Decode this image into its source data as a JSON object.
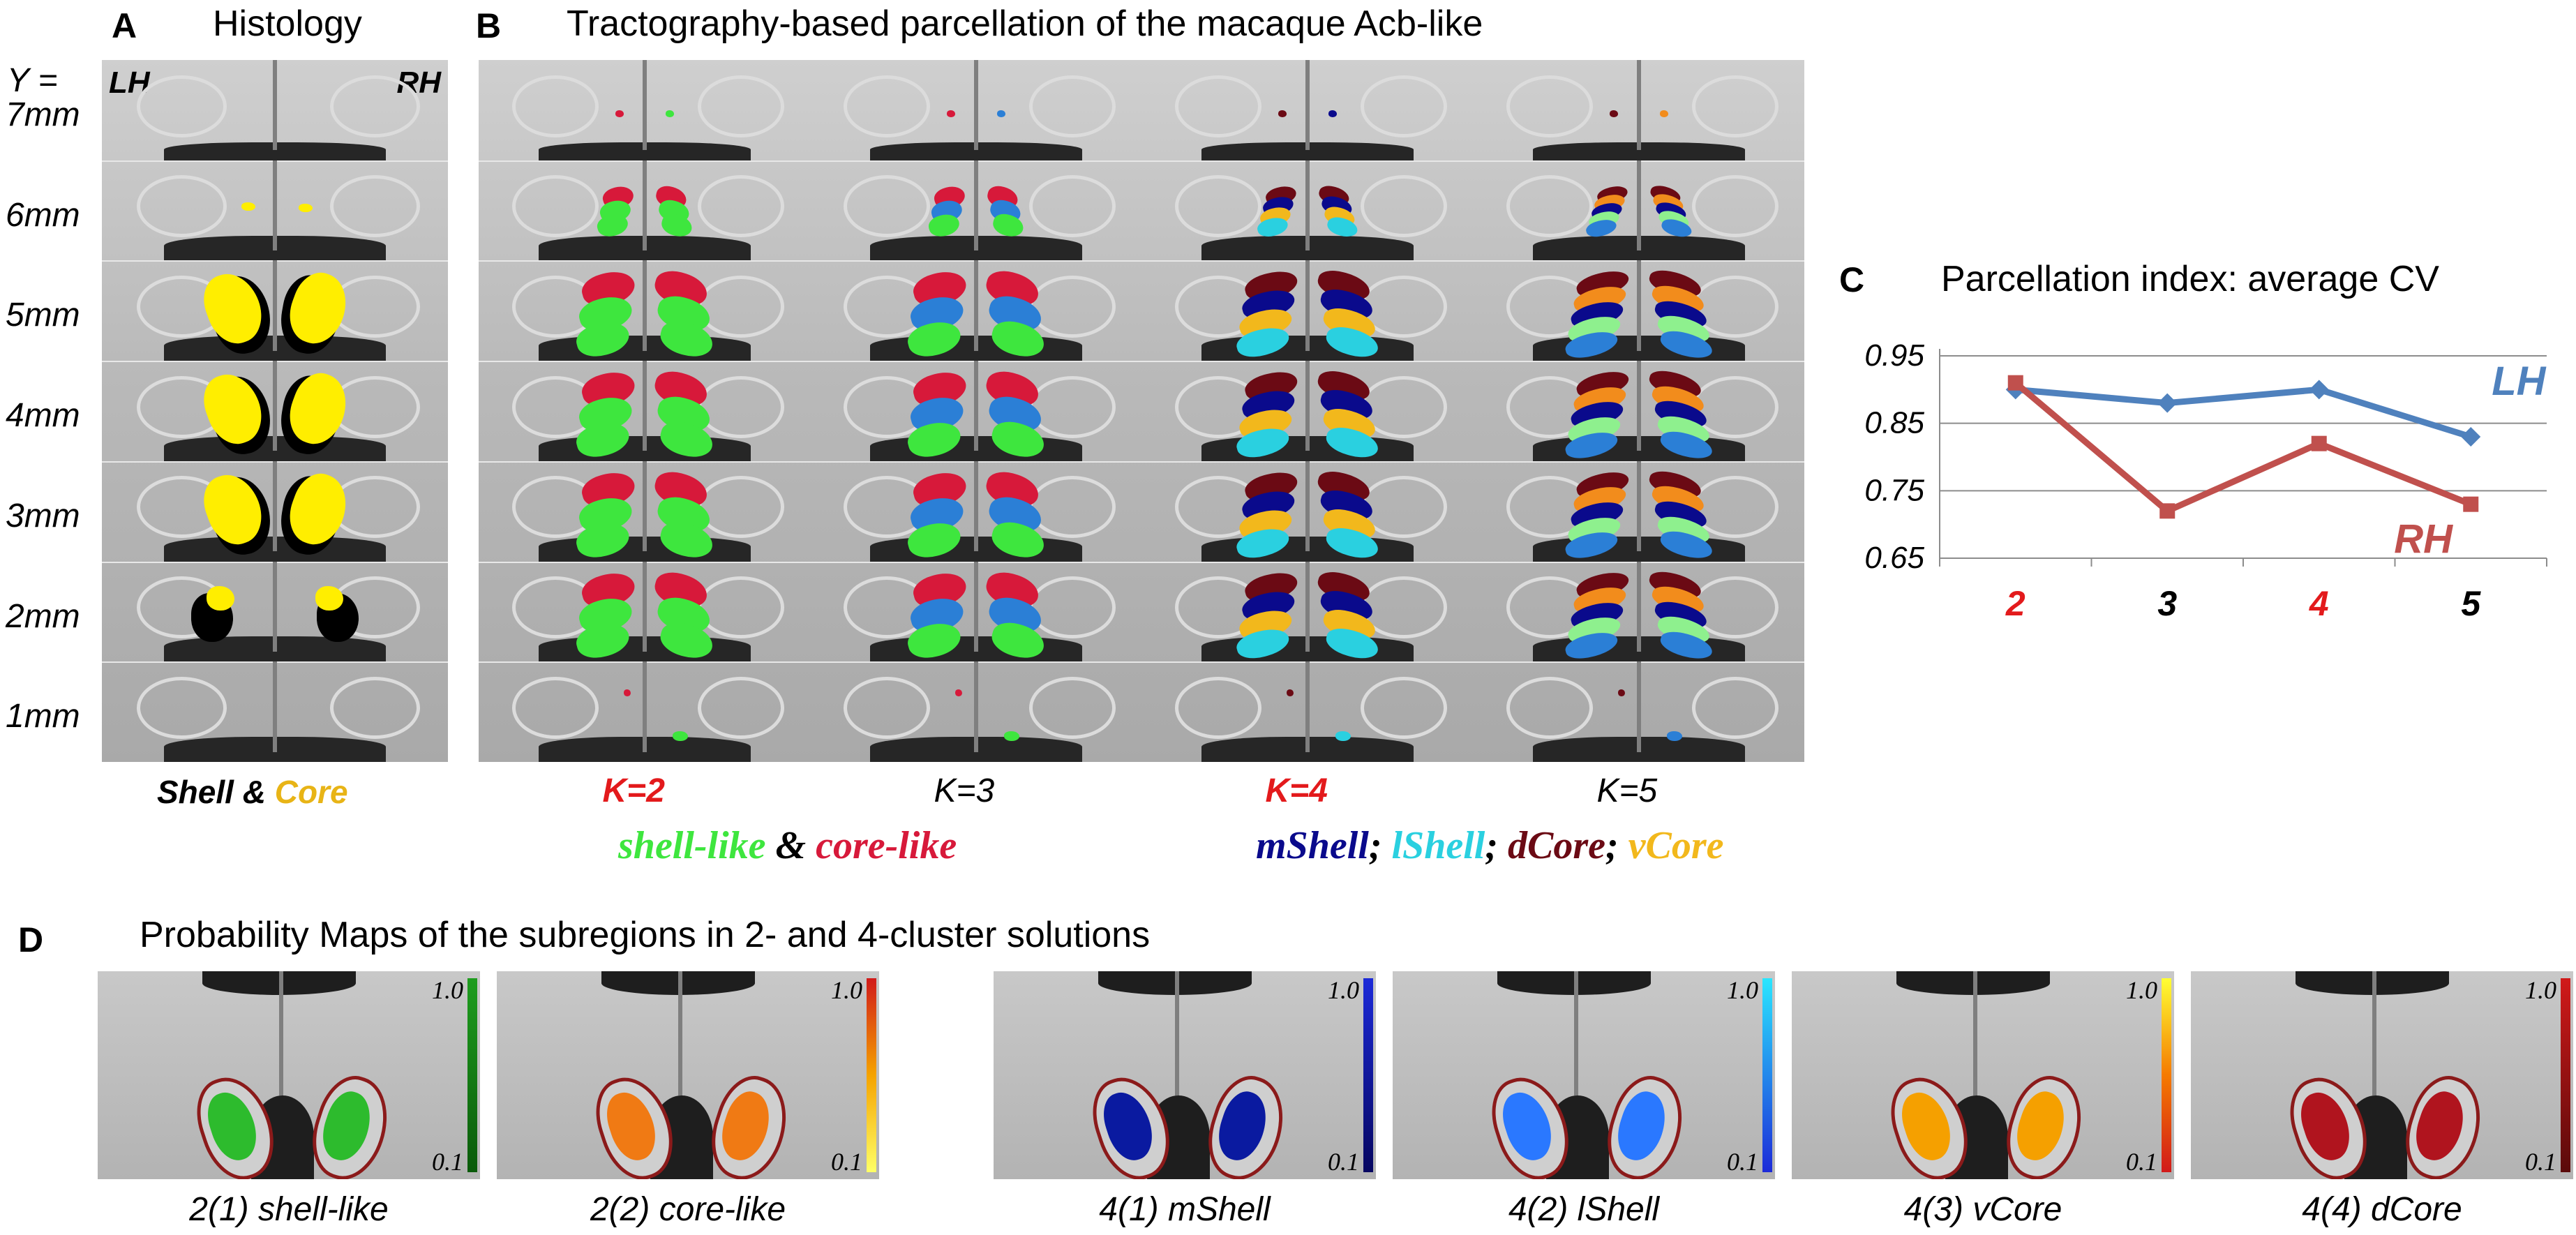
{
  "panels": {
    "a": {
      "letter": "A",
      "title": "Histology",
      "lh": "LH",
      "rh": "RH",
      "caption_shell": "Shell",
      "caption_amp": " & ",
      "caption_core": "Core"
    },
    "b": {
      "letter": "B",
      "title": "Tractography-based parcellation of the macaque Acb-like"
    },
    "c": {
      "letter": "C",
      "title": "Parcellation index: average CV"
    },
    "d": {
      "letter": "D",
      "title": "Probability Maps of the subregions in 2- and 4-cluster solutions"
    }
  },
  "y_axis": {
    "label": "Y  =",
    "slices": [
      "7mm",
      "6mm",
      "5mm",
      "4mm",
      "3mm",
      "2mm",
      "1mm"
    ]
  },
  "k_labels": [
    "K=2",
    "K=3",
    "K=4",
    "K=5"
  ],
  "legend": {
    "shell_like": "shell-like",
    "amp": " & ",
    "core_like": "core-like",
    "mshell": "mShell",
    "lshell": "lShell",
    "dcore": "dCore",
    "vcore": "vCore",
    "sep": "; "
  },
  "colors": {
    "red_label": "#e31a1c",
    "shell_green": "#3ee63e",
    "core_red": "#d7193a",
    "mshell": "#0a0a8c",
    "lshell": "#2ad0e0",
    "dcore": "#6b0a14",
    "vcore": "#f2b81c",
    "k3_blue": "#2b7fd6",
    "k5_orange": "#f28c1c",
    "k5_lightgreen": "#8ef08e",
    "lh_line": "#4f81bd",
    "rh_line": "#c0504d",
    "histo_yellow": "#ffee00"
  },
  "chart_data": {
    "type": "line",
    "title": "Parcellation index: average CV",
    "categories": [
      "2",
      "3",
      "4",
      "5"
    ],
    "category_colors": [
      "#e31a1c",
      "#000000",
      "#e31a1c",
      "#000000"
    ],
    "yticks": [
      "0.95",
      "0.85",
      "0.75",
      "0.65"
    ],
    "ylim": [
      0.65,
      0.95
    ],
    "grid": true,
    "series": [
      {
        "name": "LH",
        "values": [
          0.9,
          0.88,
          0.9,
          0.83
        ],
        "color": "#4f81bd",
        "marker": "diamond"
      },
      {
        "name": "RH",
        "values": [
          0.91,
          0.72,
          0.82,
          0.73
        ],
        "color": "#c0504d",
        "marker": "square"
      }
    ]
  },
  "prob_maps": {
    "cbar_top": "1.0",
    "cbar_bottom": "0.1",
    "maps": [
      {
        "label": "2(1) shell-like",
        "gradient": "linear-gradient(180deg,#1f9d1f,#0a5a0a)",
        "blob": "#2dbb2d"
      },
      {
        "label": "2(2) core-like",
        "gradient": "linear-gradient(180deg,#d11a1a,#f5a300,#ffff66)",
        "blob": "#f07a14"
      },
      {
        "label": "4(1) mShell",
        "gradient": "linear-gradient(180deg,#1c2ad8,#060660)",
        "blob": "#0a1aa0"
      },
      {
        "label": "4(2) lShell",
        "gradient": "linear-gradient(180deg,#2ae6ff,#1c2ad8)",
        "blob": "#2a78ff"
      },
      {
        "label": "4(3) vCore",
        "gradient": "linear-gradient(180deg,#ffff33,#f57a00,#d11a1a)",
        "blob": "#f5a000"
      },
      {
        "label": "4(4) dCore",
        "gradient": "linear-gradient(180deg,#d11a1a,#5a0a0a)",
        "blob": "#b0141e"
      }
    ]
  }
}
